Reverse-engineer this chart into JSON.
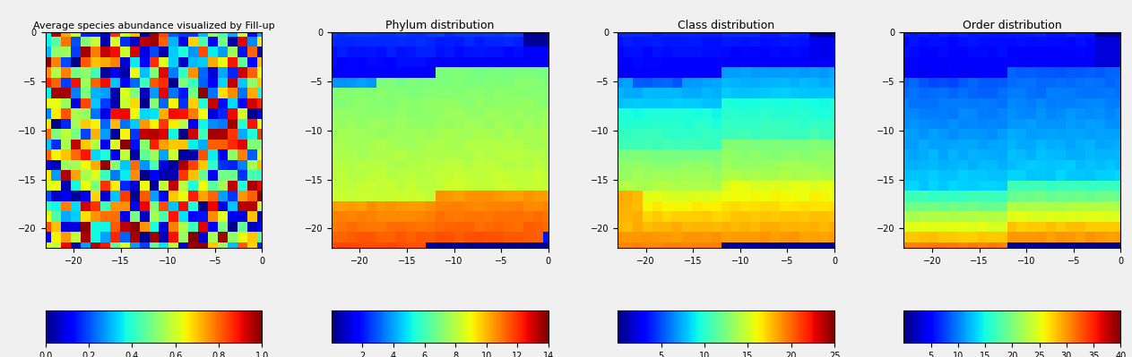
{
  "panel1_title": "Average species abundance visualized by Fill-up",
  "panel2_title": "Phylum distribution",
  "panel3_title": "Class distribution",
  "panel4_title": "Order distribution",
  "cmap1": "jet",
  "cmap2": "jet",
  "cmap3": "jet",
  "cmap4": "jet",
  "vmin1": 0.0,
  "vmax1": 1.0,
  "vmin2": 0.0,
  "vmax2": 14.0,
  "vmin3": 0.0,
  "vmax3": 25.0,
  "vmin4": 0.0,
  "vmax4": 40.0,
  "cb1_ticks": [
    0.0,
    0.2,
    0.4,
    0.6,
    0.8,
    1.0
  ],
  "cb2_ticks": [
    2,
    4,
    6,
    8,
    10,
    12,
    14
  ],
  "cb3_ticks": [
    5,
    10,
    15,
    20,
    25
  ],
  "cb4_ticks": [
    5,
    10,
    15,
    20,
    25,
    30,
    35,
    40
  ],
  "n_rows": 22,
  "n_cols": 23,
  "seed1": 42,
  "background": "#f0f0f0"
}
